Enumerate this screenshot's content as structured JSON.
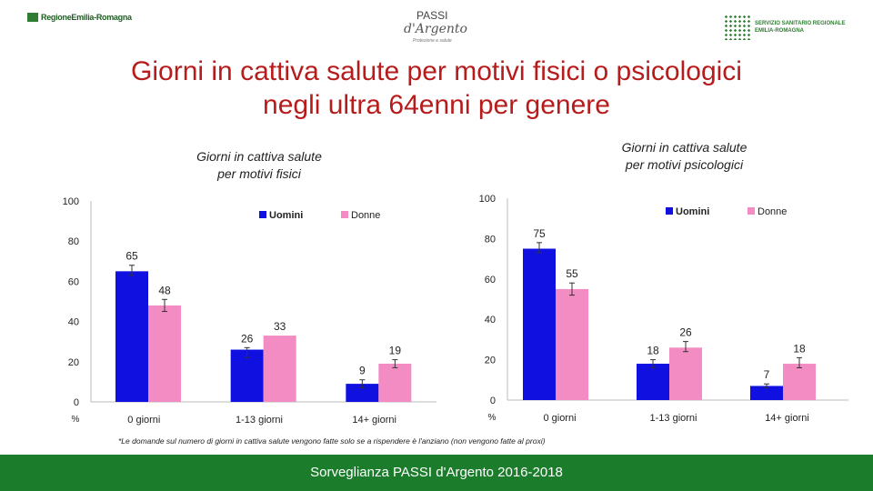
{
  "logos": {
    "left": "RegioneEmilia-Romagna",
    "mid_top": "PASSI",
    "mid_main": "d'Argento",
    "mid_sub": "Protezione e salute",
    "right_line1": "SERVIZIO SANITARIO REGIONALE",
    "right_line2": "EMILIA-ROMAGNA"
  },
  "title_line1": "Giorni in cattiva salute per motivi fisici o psicologici",
  "title_line2": "negli ultra 64enni per genere",
  "chart_data": [
    {
      "type": "bar",
      "title_line1": "Giorni in cattiva salute",
      "title_line2": "per motivi fisici",
      "categories": [
        "0 giorni",
        "1-13 giorni",
        "14+ giorni"
      ],
      "series": [
        {
          "name": "Uomini",
          "color": "#1010e0",
          "values": [
            65,
            26,
            9
          ],
          "ci": [
            [
              63,
              68
            ],
            [
              22,
              27
            ],
            [
              7,
              11
            ]
          ]
        },
        {
          "name": "Donne",
          "color": "#f48cc4",
          "values": [
            48,
            33,
            null
          ],
          "ci": [
            [
              45,
              51
            ],
            [
              null,
              null
            ],
            [
              17,
              21
            ]
          ]
        }
      ],
      "extra_labels": [
        {
          "series": "Donne",
          "category": "14+ giorni",
          "label": "19",
          "value": 19
        }
      ],
      "ylim": [
        0,
        100
      ],
      "yticks": [
        0,
        20,
        40,
        60,
        80,
        100
      ],
      "ylabel": "%",
      "legend": "top-right"
    },
    {
      "type": "bar",
      "title_line1": "Giorni in cattiva salute",
      "title_line2": "per motivi psicologici",
      "categories": [
        "0 giorni",
        "1-13 giorni",
        "14+ giorni"
      ],
      "series": [
        {
          "name": "Uomini",
          "color": "#1010e0",
          "values": [
            75,
            18,
            7
          ],
          "ci": [
            [
              73,
              78
            ],
            [
              16,
              20
            ],
            [
              6,
              8
            ]
          ]
        },
        {
          "name": "Donne",
          "color": "#f48cc4",
          "values": [
            55,
            26,
            18
          ],
          "ci": [
            [
              52,
              58
            ],
            [
              24,
              29
            ],
            [
              16,
              21
            ]
          ]
        }
      ],
      "ylim": [
        0,
        100
      ],
      "yticks": [
        0,
        20,
        40,
        60,
        80,
        100
      ],
      "ylabel": "%",
      "legend": "top-right"
    }
  ],
  "footnote": "*Le domande sul numero di giorni in cattiva salute vengono fatte solo se a rispendere è l'anziano (non vengono fatte al proxi)",
  "footer": "Sorveglianza PASSI d'Argento 2016-2018"
}
